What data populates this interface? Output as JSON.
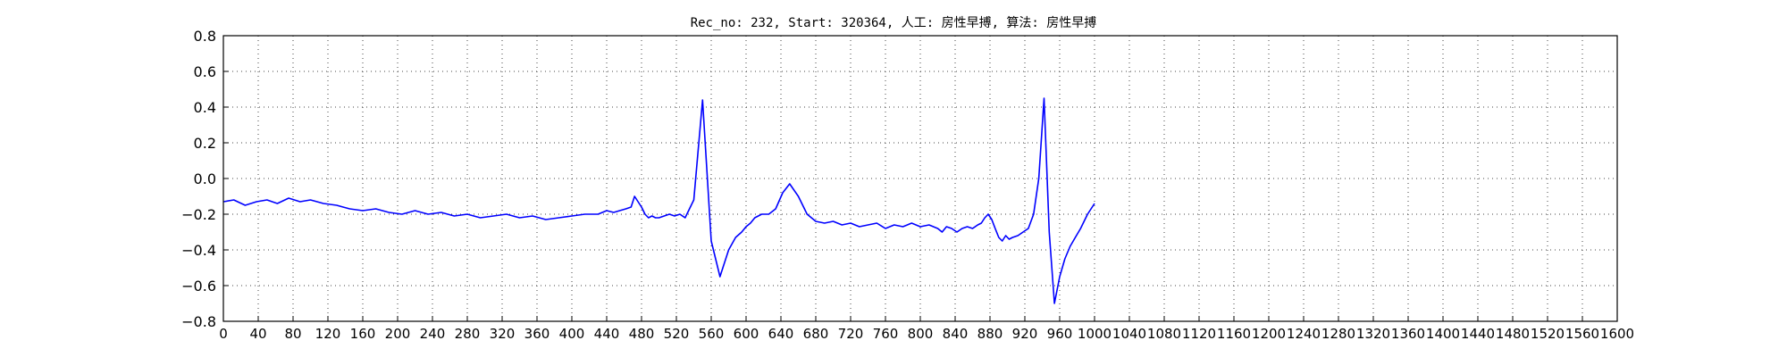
{
  "chart_data": {
    "type": "line",
    "title": "Rec_no: 232, Start: 320364, 人工: 房性早搏, 算法: 房性早搏",
    "xlabel": "",
    "ylabel": "",
    "xlim": [
      0,
      1600
    ],
    "ylim": [
      -0.8,
      0.8
    ],
    "grid": true,
    "yticks": [
      -0.8,
      -0.6,
      -0.4,
      -0.2,
      0.0,
      0.2,
      0.4,
      0.6,
      0.8
    ],
    "ytick_labels": [
      "−0.8",
      "−0.6",
      "−0.4",
      "−0.2",
      "0.0",
      "0.2",
      "0.4",
      "0.6",
      "0.8"
    ],
    "xticks": [
      0,
      40,
      80,
      120,
      160,
      200,
      240,
      280,
      320,
      360,
      400,
      440,
      480,
      520,
      560,
      600,
      640,
      680,
      720,
      760,
      800,
      840,
      880,
      920,
      960,
      1000,
      1040,
      1080,
      1120,
      1160,
      1200,
      1240,
      1280,
      1320,
      1360,
      1400,
      1440,
      1480,
      1520,
      1560,
      1600
    ],
    "xtick_labels": [
      "0",
      "40",
      "80",
      "120",
      "160",
      "200",
      "240",
      "280",
      "320",
      "360",
      "400",
      "440",
      "480",
      "520",
      "560",
      "600",
      "640",
      "680",
      "720",
      "760",
      "800",
      "840",
      "880",
      "920",
      "960",
      "1000",
      "1040",
      "1080",
      "1120",
      "1160",
      "1200",
      "1240",
      "1280",
      "1320",
      "1360",
      "1400",
      "1440",
      "1480",
      "1520",
      "1560",
      "1600"
    ],
    "series": [
      {
        "color": "#0000ff",
        "segment": "before",
        "x": [
          0,
          10,
          20,
          30,
          40,
          50,
          60,
          80,
          100,
          130,
          160,
          200,
          240,
          280,
          320,
          360,
          400,
          430,
          440,
          450,
          455,
          460,
          465,
          470,
          480,
          490,
          500,
          505,
          510,
          515,
          520,
          525,
          530,
          540,
          550,
          560,
          570,
          580,
          590,
          600,
          610,
          620,
          630,
          640,
          650,
          660,
          670,
          680,
          690,
          700,
          710,
          720,
          740,
          760,
          780,
          800,
          820,
          830,
          840,
          845,
          850,
          855,
          860,
          865,
          870,
          880,
          890,
          900,
          910,
          920,
          930,
          940,
          950,
          955,
          960,
          965,
          970,
          975,
          980,
          990,
          1000
        ],
        "y": [
          -0.13,
          -0.12,
          -0.15,
          -0.13,
          -0.12,
          -0.14,
          -0.13,
          -0.11,
          -0.13,
          -0.15,
          -0.18,
          -0.19,
          -0.2,
          -0.19,
          -0.22,
          -0.21,
          -0.2,
          -0.19,
          -0.18,
          -0.19,
          -0.2,
          -0.1,
          -0.15,
          -0.19,
          -0.2,
          -0.22,
          -0.2,
          -0.15,
          0.44,
          -0.3,
          -0.55,
          -0.4,
          -0.35,
          -0.28,
          -0.25,
          -0.22,
          -0.2,
          -0.18,
          -0.08,
          -0.03,
          -0.1,
          -0.22,
          -0.25,
          -0.24,
          -0.26,
          -0.25,
          -0.27,
          -0.26,
          -0.28,
          -0.27,
          -0.26,
          -0.28,
          -0.27,
          -0.28,
          -0.26,
          -0.28,
          -0.3,
          -0.28,
          -0.22,
          -0.2,
          -0.3,
          -0.35,
          -0.33,
          -0.35,
          -0.34,
          -0.3,
          -0.25,
          -0.2,
          -0.15,
          -0.08,
          0.0,
          0.45,
          -0.4,
          -0.7,
          -0.55,
          -0.45,
          -0.38,
          -0.32,
          -0.28,
          -0.25,
          -0.2
        ]
      }
    ],
    "lines": [
      {
        "color": "#0000ff",
        "x": [
          0,
          12,
          25,
          38,
          50,
          62,
          75,
          88,
          100,
          115,
          130,
          145,
          160,
          175,
          190,
          205,
          220,
          235,
          250,
          265,
          280,
          295,
          310,
          325,
          340,
          355,
          370,
          385,
          400,
          415,
          430,
          440,
          448,
          455,
          462,
          468,
          472,
          476,
          480,
          484,
          488,
          492,
          496,
          500,
          506,
          512,
          518,
          524,
          530,
          540,
          550,
          560,
          570,
          580,
          588,
          595,
          600,
          605,
          610,
          618,
          626,
          634,
          642,
          650,
          660,
          670,
          680,
          690,
          700,
          710,
          720,
          730,
          740,
          750,
          760,
          770,
          780,
          790,
          800,
          810,
          820,
          825,
          830,
          836,
          842,
          848,
          854,
          860,
          866,
          870,
          874,
          878,
          882,
          886,
          890,
          894,
          898,
          902,
          906,
          912,
          918,
          924,
          930,
          936,
          942,
          948,
          954,
          960,
          966,
          972,
          978,
          984,
          988,
          992,
          996,
          1000
        ],
        "y": [
          -0.13,
          -0.12,
          -0.15,
          -0.13,
          -0.12,
          -0.14,
          -0.11,
          -0.13,
          -0.12,
          -0.14,
          -0.15,
          -0.17,
          -0.18,
          -0.17,
          -0.19,
          -0.2,
          -0.18,
          -0.2,
          -0.19,
          -0.21,
          -0.2,
          -0.22,
          -0.21,
          -0.2,
          -0.22,
          -0.21,
          -0.23,
          -0.22,
          -0.21,
          -0.2,
          -0.2,
          -0.18,
          -0.19,
          -0.18,
          -0.17,
          -0.16,
          -0.1,
          -0.13,
          -0.16,
          -0.2,
          -0.22,
          -0.21,
          -0.22,
          -0.22,
          -0.21,
          -0.2,
          -0.21,
          -0.2,
          -0.22,
          -0.12,
          0.44,
          -0.35,
          -0.55,
          -0.4,
          -0.33,
          -0.3,
          -0.27,
          -0.25,
          -0.22,
          -0.2,
          -0.2,
          -0.17,
          -0.08,
          -0.03,
          -0.1,
          -0.2,
          -0.24,
          -0.25,
          -0.24,
          -0.26,
          -0.25,
          -0.27,
          -0.26,
          -0.25,
          -0.28,
          -0.26,
          -0.27,
          -0.25,
          -0.27,
          -0.26,
          -0.28,
          -0.3,
          -0.27,
          -0.28,
          -0.3,
          -0.28,
          -0.27,
          -0.28,
          -0.26,
          -0.25,
          -0.22,
          -0.2,
          -0.23,
          -0.28,
          -0.33,
          -0.35,
          -0.32,
          -0.34,
          -0.33,
          -0.32,
          -0.3,
          -0.28,
          -0.2,
          0.0,
          0.45,
          -0.3,
          -0.7,
          -0.55,
          -0.45,
          -0.38,
          -0.33,
          -0.28,
          -0.24,
          -0.2,
          -0.17,
          -0.14
        ]
      }
    ]
  }
}
